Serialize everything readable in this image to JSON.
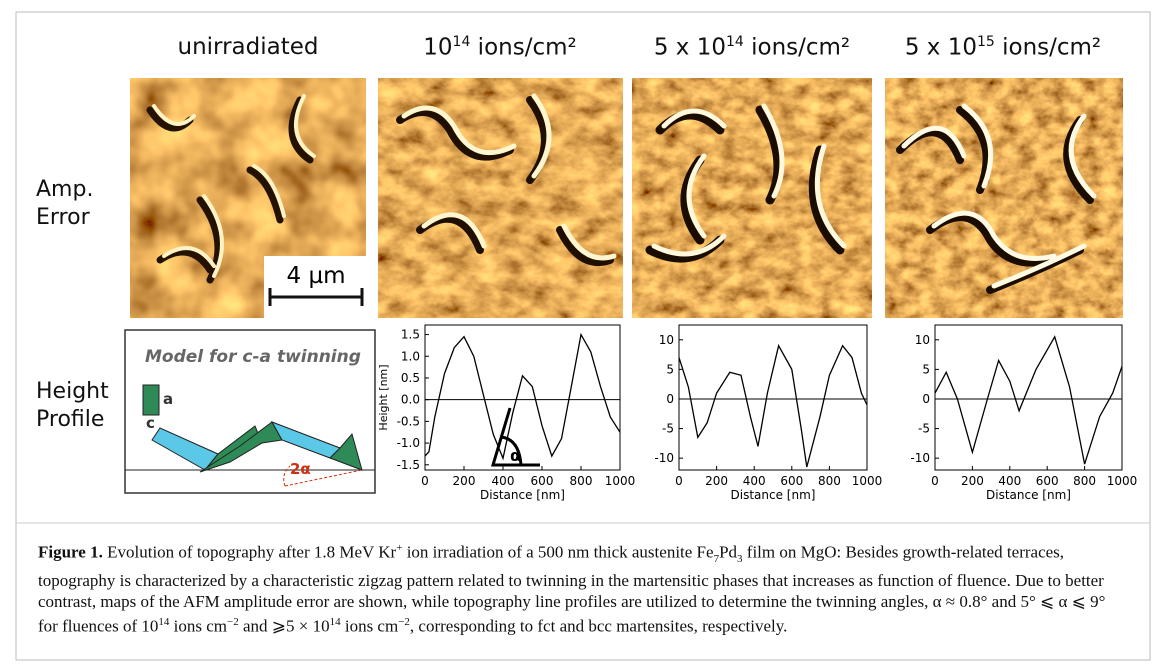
{
  "columns": [
    [
      {
        "t": "unirradiated"
      }
    ],
    [
      {
        "t": "10"
      },
      {
        "sup": "14"
      },
      {
        "t": " ions/cm²"
      }
    ],
    [
      {
        "t": "5 x 10"
      },
      {
        "sup": "14"
      },
      {
        "t": " ions/cm²"
      }
    ],
    [
      {
        "t": "5 x 10"
      },
      {
        "sup": "15"
      },
      {
        "t": " ions/cm²"
      }
    ]
  ],
  "rows": [
    "Amp.\nError",
    "Height\nProfile"
  ],
  "scale_bar": "4 µm",
  "model": {
    "title": "Model for c-a twinning",
    "a": "a",
    "c": "c",
    "angle": "2α"
  },
  "chart_data": [
    {
      "type": "line",
      "xlabel": "Distance [nm]",
      "ylabel": "Height [nm]",
      "annotation": "α",
      "color": "#000000",
      "x": [
        0,
        20,
        50,
        100,
        150,
        200,
        250,
        300,
        350,
        400,
        450,
        500,
        550,
        600,
        650,
        700,
        750,
        800,
        850,
        900,
        950,
        1000
      ],
      "values": [
        -1.3,
        -1.2,
        -0.4,
        0.6,
        1.2,
        1.45,
        1.0,
        0.1,
        -0.8,
        -1.35,
        -0.3,
        0.55,
        0.3,
        -0.6,
        -1.3,
        -0.9,
        0.3,
        1.5,
        1.1,
        0.3,
        -0.4,
        -0.75
      ],
      "xlim": [
        0,
        1000
      ],
      "ylim": [
        -1.62,
        1.72
      ],
      "xticks": [
        0,
        200,
        400,
        600,
        800,
        1000
      ],
      "yticks": [
        1.5,
        {
          "value": 1,
          "label": "1.0"
        },
        0.5,
        {
          "value": 0,
          "label": "0.0"
        },
        -0.5,
        {
          "value": -1,
          "label": "-1.0"
        },
        -1.5
      ]
    },
    {
      "type": "line",
      "xlabel": "Distance [nm]",
      "color": "#000000",
      "x": [
        0,
        50,
        100,
        150,
        200,
        270,
        330,
        380,
        420,
        470,
        530,
        600,
        650,
        680,
        750,
        800,
        870,
        920,
        970,
        1000
      ],
      "values": [
        7,
        2,
        -6.5,
        -4,
        1,
        4.5,
        4,
        -3,
        -8,
        1,
        9,
        5,
        -5,
        -11.5,
        -3,
        4,
        9,
        7,
        1,
        -1
      ],
      "xlim": [
        0,
        1000
      ],
      "ylim": [
        -12,
        12.5
      ],
      "xticks": [
        0,
        200,
        400,
        600,
        800,
        1000
      ],
      "yticks": [
        10,
        5,
        0,
        -5,
        -10
      ]
    },
    {
      "type": "line",
      "xlabel": "Distance [nm]",
      "color": "#000000",
      "x": [
        0,
        60,
        120,
        200,
        280,
        340,
        400,
        450,
        540,
        640,
        720,
        800,
        880,
        950,
        1000
      ],
      "values": [
        1,
        4.5,
        0,
        -9,
        0,
        6.5,
        3,
        -2,
        5,
        10.5,
        2,
        -11,
        -3,
        1,
        5.5
      ],
      "xlim": [
        0,
        1000
      ],
      "ylim": [
        -12,
        12.5
      ],
      "xticks": [
        0,
        200,
        400,
        600,
        800,
        1000
      ],
      "yticks": [
        10,
        5,
        0,
        -5,
        -10
      ]
    }
  ],
  "caption": [
    {
      "b": "Figure 1."
    },
    {
      "t": " Evolution of topography after 1.8 MeV Kr"
    },
    {
      "sup": "+"
    },
    {
      "t": " ion irradiation of a 500 nm thick austenite Fe"
    },
    {
      "sub": "7"
    },
    {
      "t": "Pd"
    },
    {
      "sub": "3"
    },
    {
      "t": " film on MgO: Besides growth-related terraces, topography is characterized by a characteristic zigzag pattern related to twinning in the martensitic phases that increases as function of fluence. Due to better contrast, maps of the AFM amplitude error are shown, while topography line profiles are utilized to determine the twinning angles, α ≈ 0.8° and 5° ⩽ α ⩽ 9° for fluences of 10"
    },
    {
      "sup": "14"
    },
    {
      "t": " ions cm"
    },
    {
      "sup": "−2"
    },
    {
      "t": " and ⩾5 × 10"
    },
    {
      "sup": "14"
    },
    {
      "t": " ions cm"
    },
    {
      "sup": "−2"
    },
    {
      "t": ", corresponding to fct and bcc martensites, respectively."
    }
  ]
}
